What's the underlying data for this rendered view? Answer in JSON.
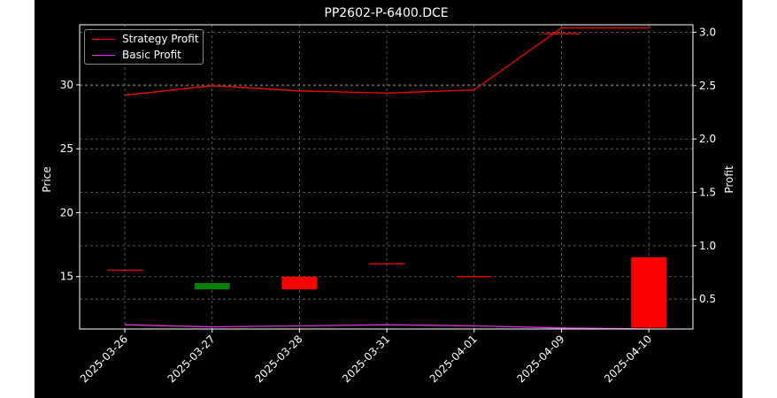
{
  "chart_data": {
    "type": "candlestick+line",
    "title": "PP2602-P-6400.DCE",
    "xlabel": "",
    "ylabel_left": "Price",
    "ylabel_right": "Profit",
    "categories": [
      "2025-03-26",
      "2025-03-27",
      "2025-03-28",
      "2025-03-31",
      "2025-04-01",
      "2025-04-09",
      "2025-04-10"
    ],
    "left_axis": {
      "ylim": [
        10.9,
        34.7
      ],
      "ticks": [
        15,
        20,
        25,
        30
      ]
    },
    "right_axis": {
      "ylim": [
        0.22,
        3.07
      ],
      "ticks": [
        0.5,
        1.0,
        1.5,
        2.0,
        2.5,
        3.0
      ]
    },
    "candles": [
      {
        "date": "2025-03-26",
        "open": 15.5,
        "close": 15.5,
        "high": 15.5,
        "low": 15.5,
        "color": "#ff0000"
      },
      {
        "date": "2025-03-27",
        "open": 14.0,
        "close": 14.5,
        "high": 14.5,
        "low": 14.0,
        "color": "#008000"
      },
      {
        "date": "2025-03-28",
        "open": 15.0,
        "close": 14.0,
        "high": 15.0,
        "low": 14.0,
        "color": "#ff0000"
      },
      {
        "date": "2025-03-31",
        "open": 16.0,
        "close": 16.0,
        "high": 16.0,
        "low": 16.0,
        "color": "#ff0000"
      },
      {
        "date": "2025-04-01",
        "open": 15.0,
        "close": 15.0,
        "high": 15.0,
        "low": 15.0,
        "color": "#ff0000"
      },
      {
        "date": "2025-04-09",
        "open": 34.0,
        "close": 34.0,
        "high": 34.0,
        "low": 34.0,
        "color": "#ff0000"
      },
      {
        "date": "2025-04-10",
        "open": 16.5,
        "close": 11.0,
        "high": 16.5,
        "low": 11.0,
        "color": "#ff0000"
      }
    ],
    "series": [
      {
        "name": "Strategy Profit",
        "axis": "right",
        "color": "#ff0000",
        "values": [
          2.41,
          2.5,
          2.45,
          2.43,
          2.46,
          3.04,
          3.04
        ]
      },
      {
        "name": "Basic Profit",
        "axis": "right",
        "color": "#dd33dd",
        "values": [
          0.26,
          0.24,
          0.25,
          0.26,
          0.25,
          0.23,
          0.22
        ]
      }
    ],
    "grid": true,
    "legend_position": "top-left"
  }
}
